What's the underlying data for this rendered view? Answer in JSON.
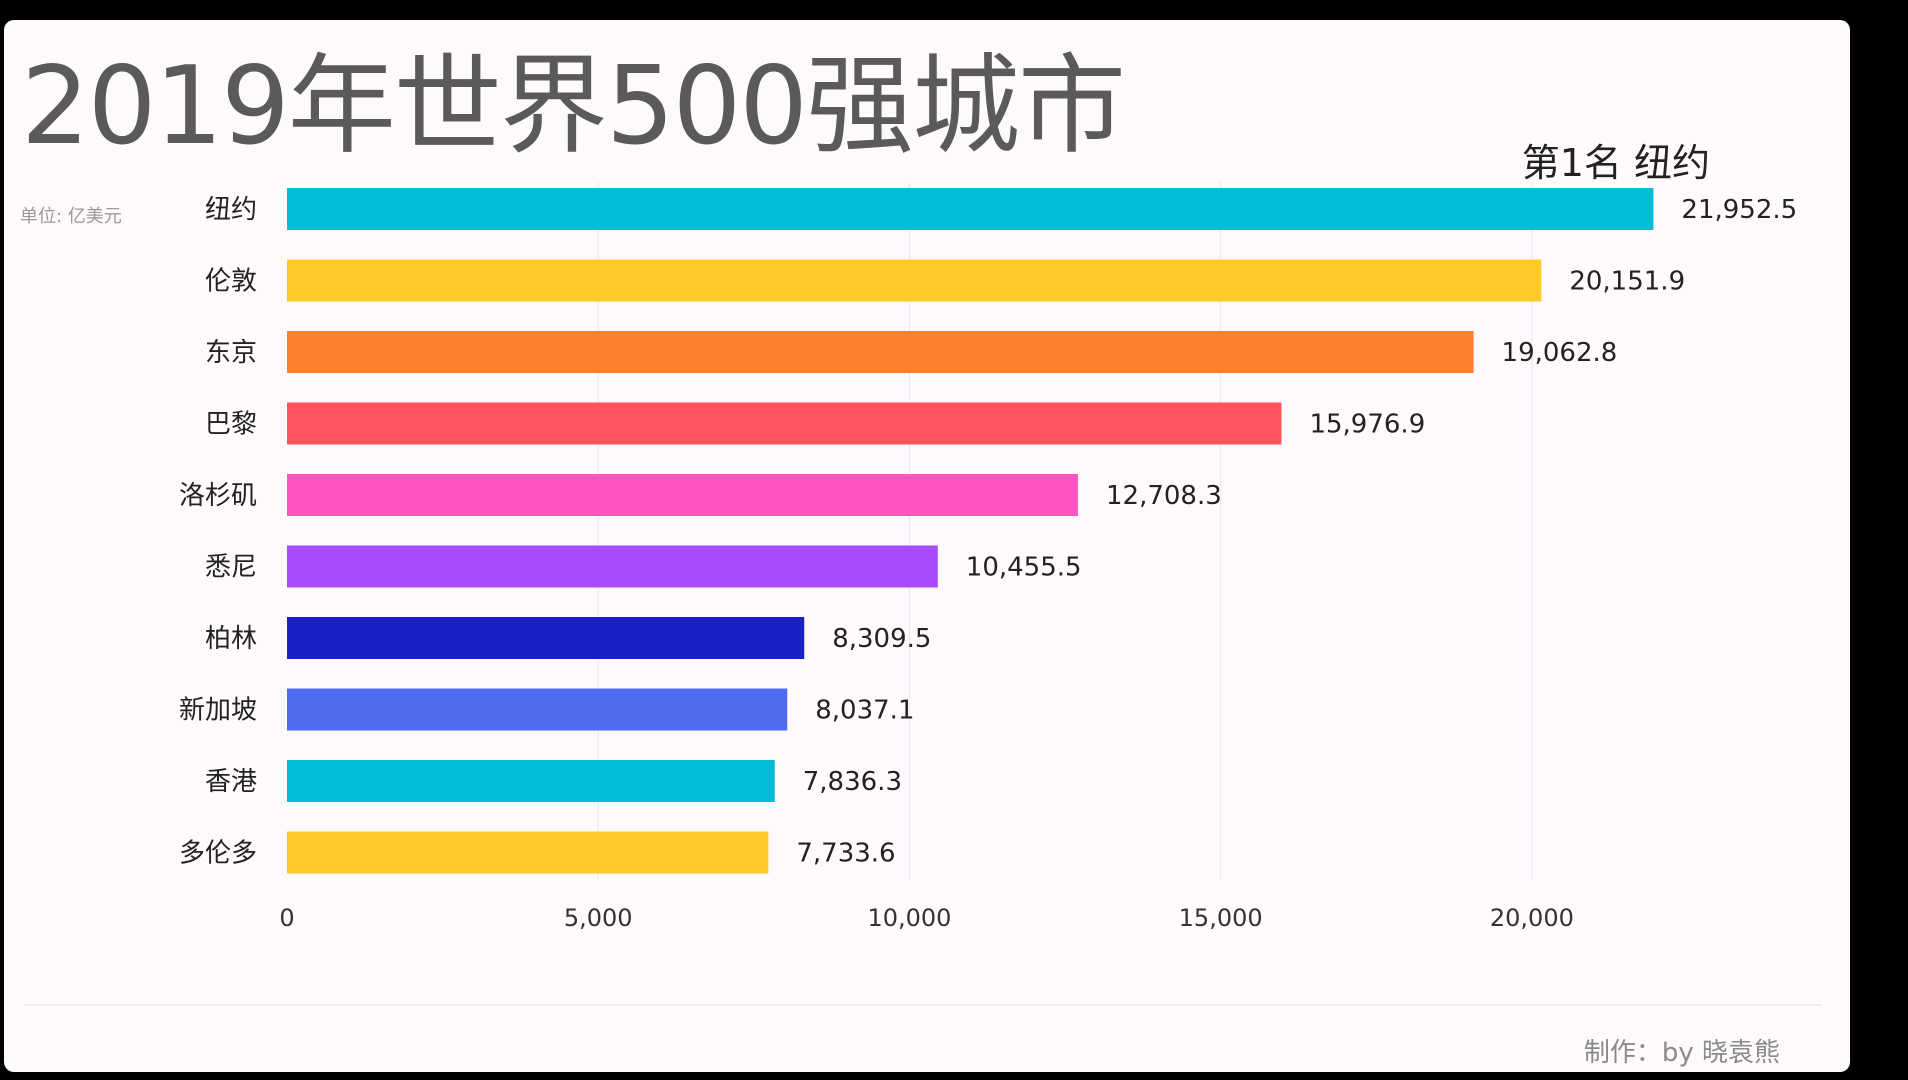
{
  "title": "2019年世界500强城市",
  "unit": "单位: 亿美元",
  "rank_text": "第1名 纽约",
  "credit": "制作：by 晓袁熊",
  "chart_data": {
    "type": "bar",
    "orientation": "horizontal",
    "categories": [
      "纽约",
      "伦敦",
      "东京",
      "巴黎",
      "洛杉矶",
      "悉尼",
      "柏林",
      "新加坡",
      "香港",
      "多伦多"
    ],
    "values": [
      21952.5,
      20151.9,
      19062.8,
      15976.9,
      12708.3,
      10455.5,
      8309.5,
      8037.1,
      7836.3,
      7733.6
    ],
    "value_labels": [
      "21,952.5",
      "20,151.9",
      "19,062.8",
      "15,976.9",
      "12,708.3",
      "10,455.5",
      "8,309.5",
      "8,037.1",
      "7,836.3",
      "7,733.6"
    ],
    "colors": [
      "#00BCD4",
      "#FFCA28",
      "#FF7F2F",
      "#FF5460",
      "#FF55C3",
      "#A84BFF",
      "#1A1FC6",
      "#4F6BEE",
      "#00BCD4",
      "#FFCA28"
    ],
    "xticks": [
      0,
      5000,
      10000,
      15000,
      20000
    ],
    "xtick_labels": [
      "0",
      "5,000",
      "10,000",
      "15,000",
      "20,000"
    ],
    "xlim": [
      0,
      22700
    ],
    "grid": true
  }
}
